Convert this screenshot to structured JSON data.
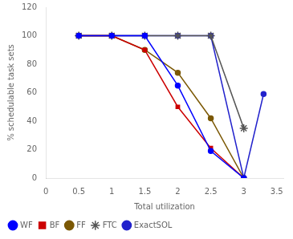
{
  "chart_data": {
    "type": "line",
    "xlabel": "Total utilization",
    "ylabel": "% schedulable task sets",
    "xlim": [
      0,
      3.6
    ],
    "ylim": [
      0,
      120
    ],
    "xticks": [
      0,
      0.5,
      1,
      1.5,
      2,
      2.5,
      3,
      3.5
    ],
    "yticks": [
      0,
      20,
      40,
      60,
      80,
      100,
      120
    ],
    "grid": false,
    "legend": "lower left",
    "series": [
      {
        "name": "WF",
        "color": "blue",
        "marker": "circle",
        "x": [
          0.5,
          1.0,
          1.5,
          2.0,
          2.5,
          3.0
        ],
        "values": [
          100,
          100,
          100,
          65,
          19,
          0
        ]
      },
      {
        "name": "BF",
        "color": "#cc0000",
        "marker": "square",
        "x": [
          0.5,
          1.0,
          1.5,
          2.0,
          2.5,
          3.0
        ],
        "values": [
          100,
          100,
          90,
          50,
          21,
          0
        ]
      },
      {
        "name": "FF",
        "color": "#7B5804",
        "marker": "circle",
        "x": [
          0.5,
          1.0,
          1.5,
          2.0,
          2.5,
          3.0
        ],
        "values": [
          100,
          100,
          90,
          74,
          42,
          0
        ]
      },
      {
        "name": "FTC",
        "color": "#555555",
        "marker": "star",
        "x": [
          0.5,
          1.0,
          1.5,
          2.0,
          2.5,
          3.0
        ],
        "values": [
          100,
          100,
          100,
          100,
          100,
          35
        ]
      },
      {
        "name": "ExactSOL",
        "color": "#2222cc",
        "marker": "circle",
        "x": [
          0.5,
          1.0,
          1.5,
          2.0,
          2.5,
          3.0,
          3.3
        ],
        "values": [
          100,
          100,
          100,
          100,
          100,
          0,
          59
        ]
      }
    ]
  }
}
